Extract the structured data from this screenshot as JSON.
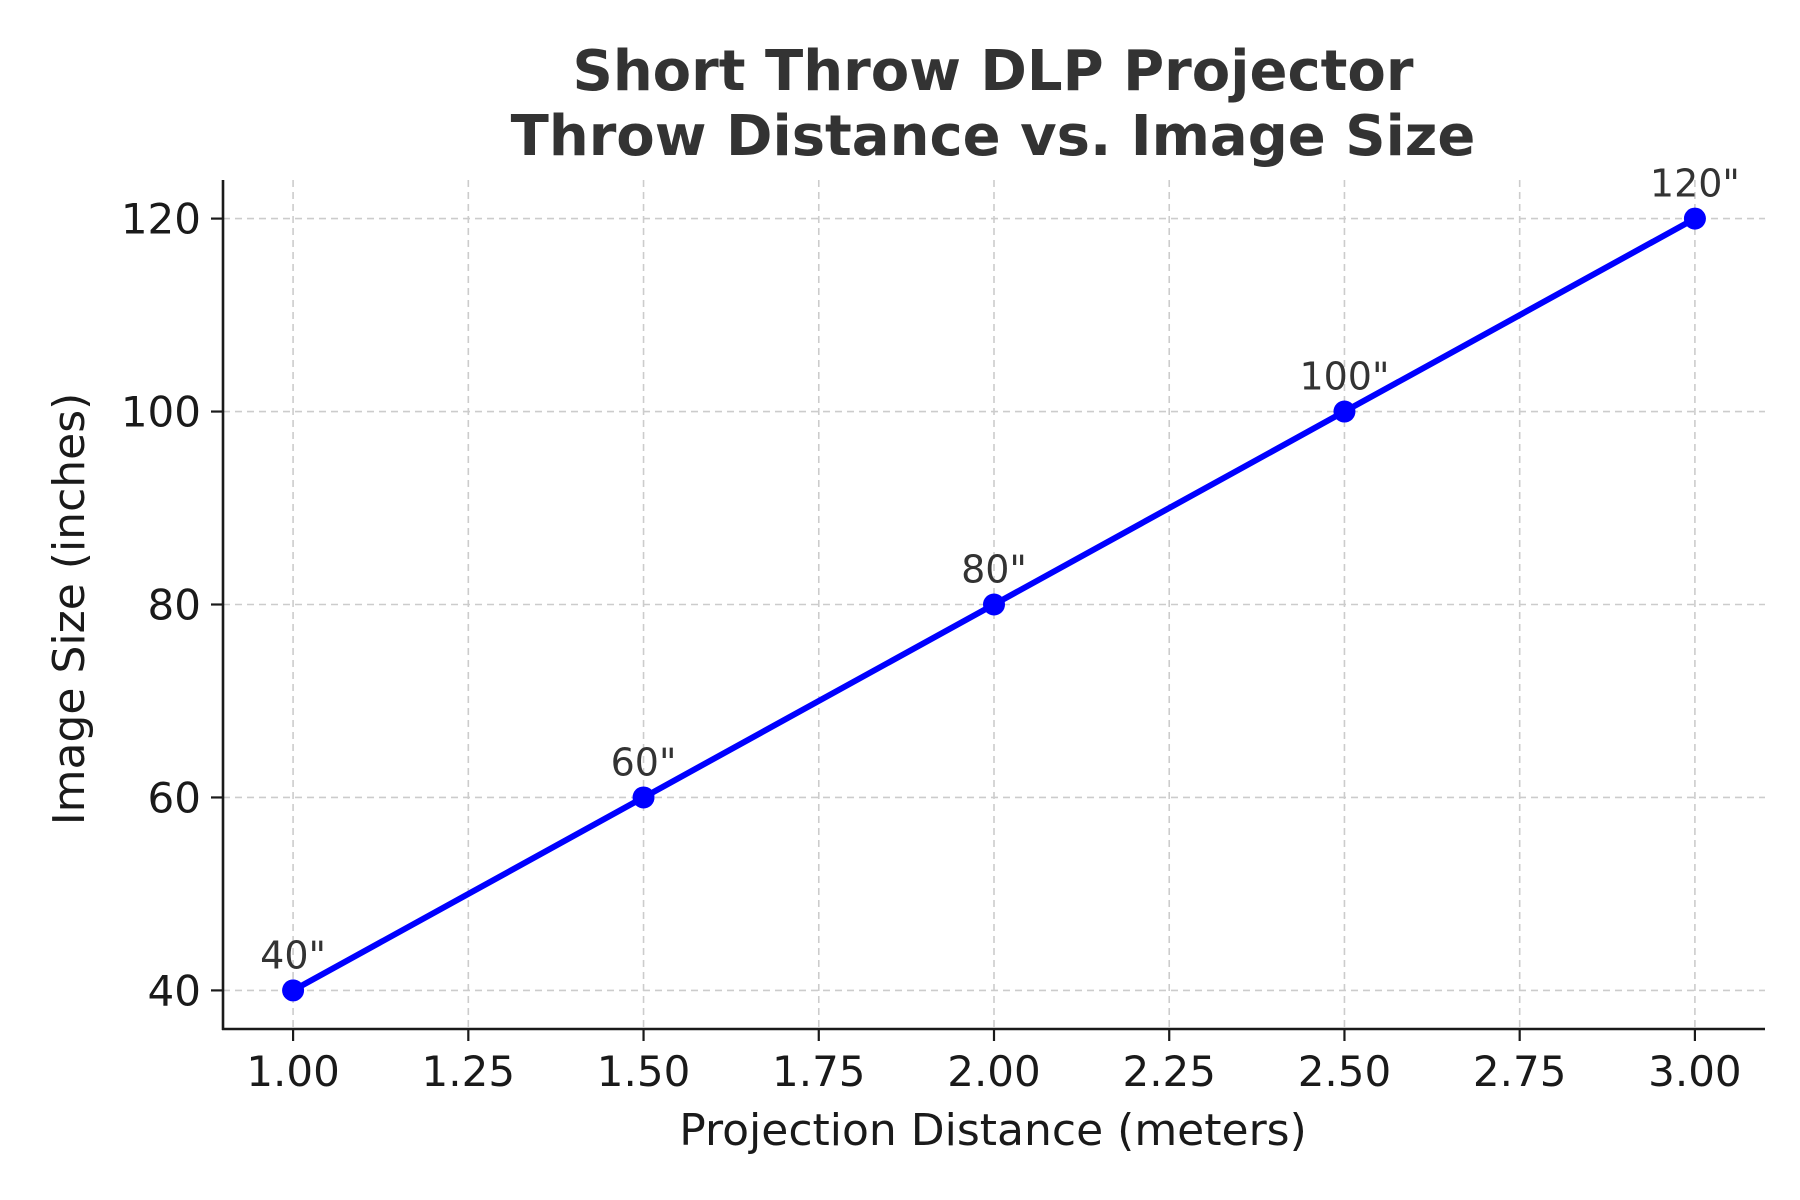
{
  "colors": {
    "series": "#0000ff",
    "title": "#333333",
    "grid": "#cccccc",
    "axis": "#1a1a1a"
  },
  "chart_data": {
    "type": "line",
    "title": "Short Throw DLP Projector",
    "subtitle": "Throw Distance vs. Image Size",
    "xlabel": "Projection Distance (meters)",
    "ylabel": "Image Size (inches)",
    "x": [
      1.0,
      1.5,
      2.0,
      2.5,
      3.0
    ],
    "series": [
      {
        "values": [
          40,
          60,
          80,
          100,
          120
        ]
      }
    ],
    "data_labels": [
      "40\"",
      "60\"",
      "80\"",
      "100\"",
      "120\""
    ],
    "xlim": [
      0.9,
      3.1
    ],
    "ylim": [
      36,
      124
    ],
    "xticks": [
      1.0,
      1.25,
      1.5,
      1.75,
      2.0,
      2.25,
      2.5,
      2.75,
      3.0
    ],
    "xtick_labels": [
      "1.00",
      "1.25",
      "1.50",
      "1.75",
      "2.00",
      "2.25",
      "2.50",
      "2.75",
      "3.00"
    ],
    "yticks": [
      40,
      60,
      80,
      100,
      120
    ],
    "ytick_labels": [
      "40",
      "60",
      "80",
      "100",
      "120"
    ],
    "grid": true,
    "marker": "circle"
  }
}
